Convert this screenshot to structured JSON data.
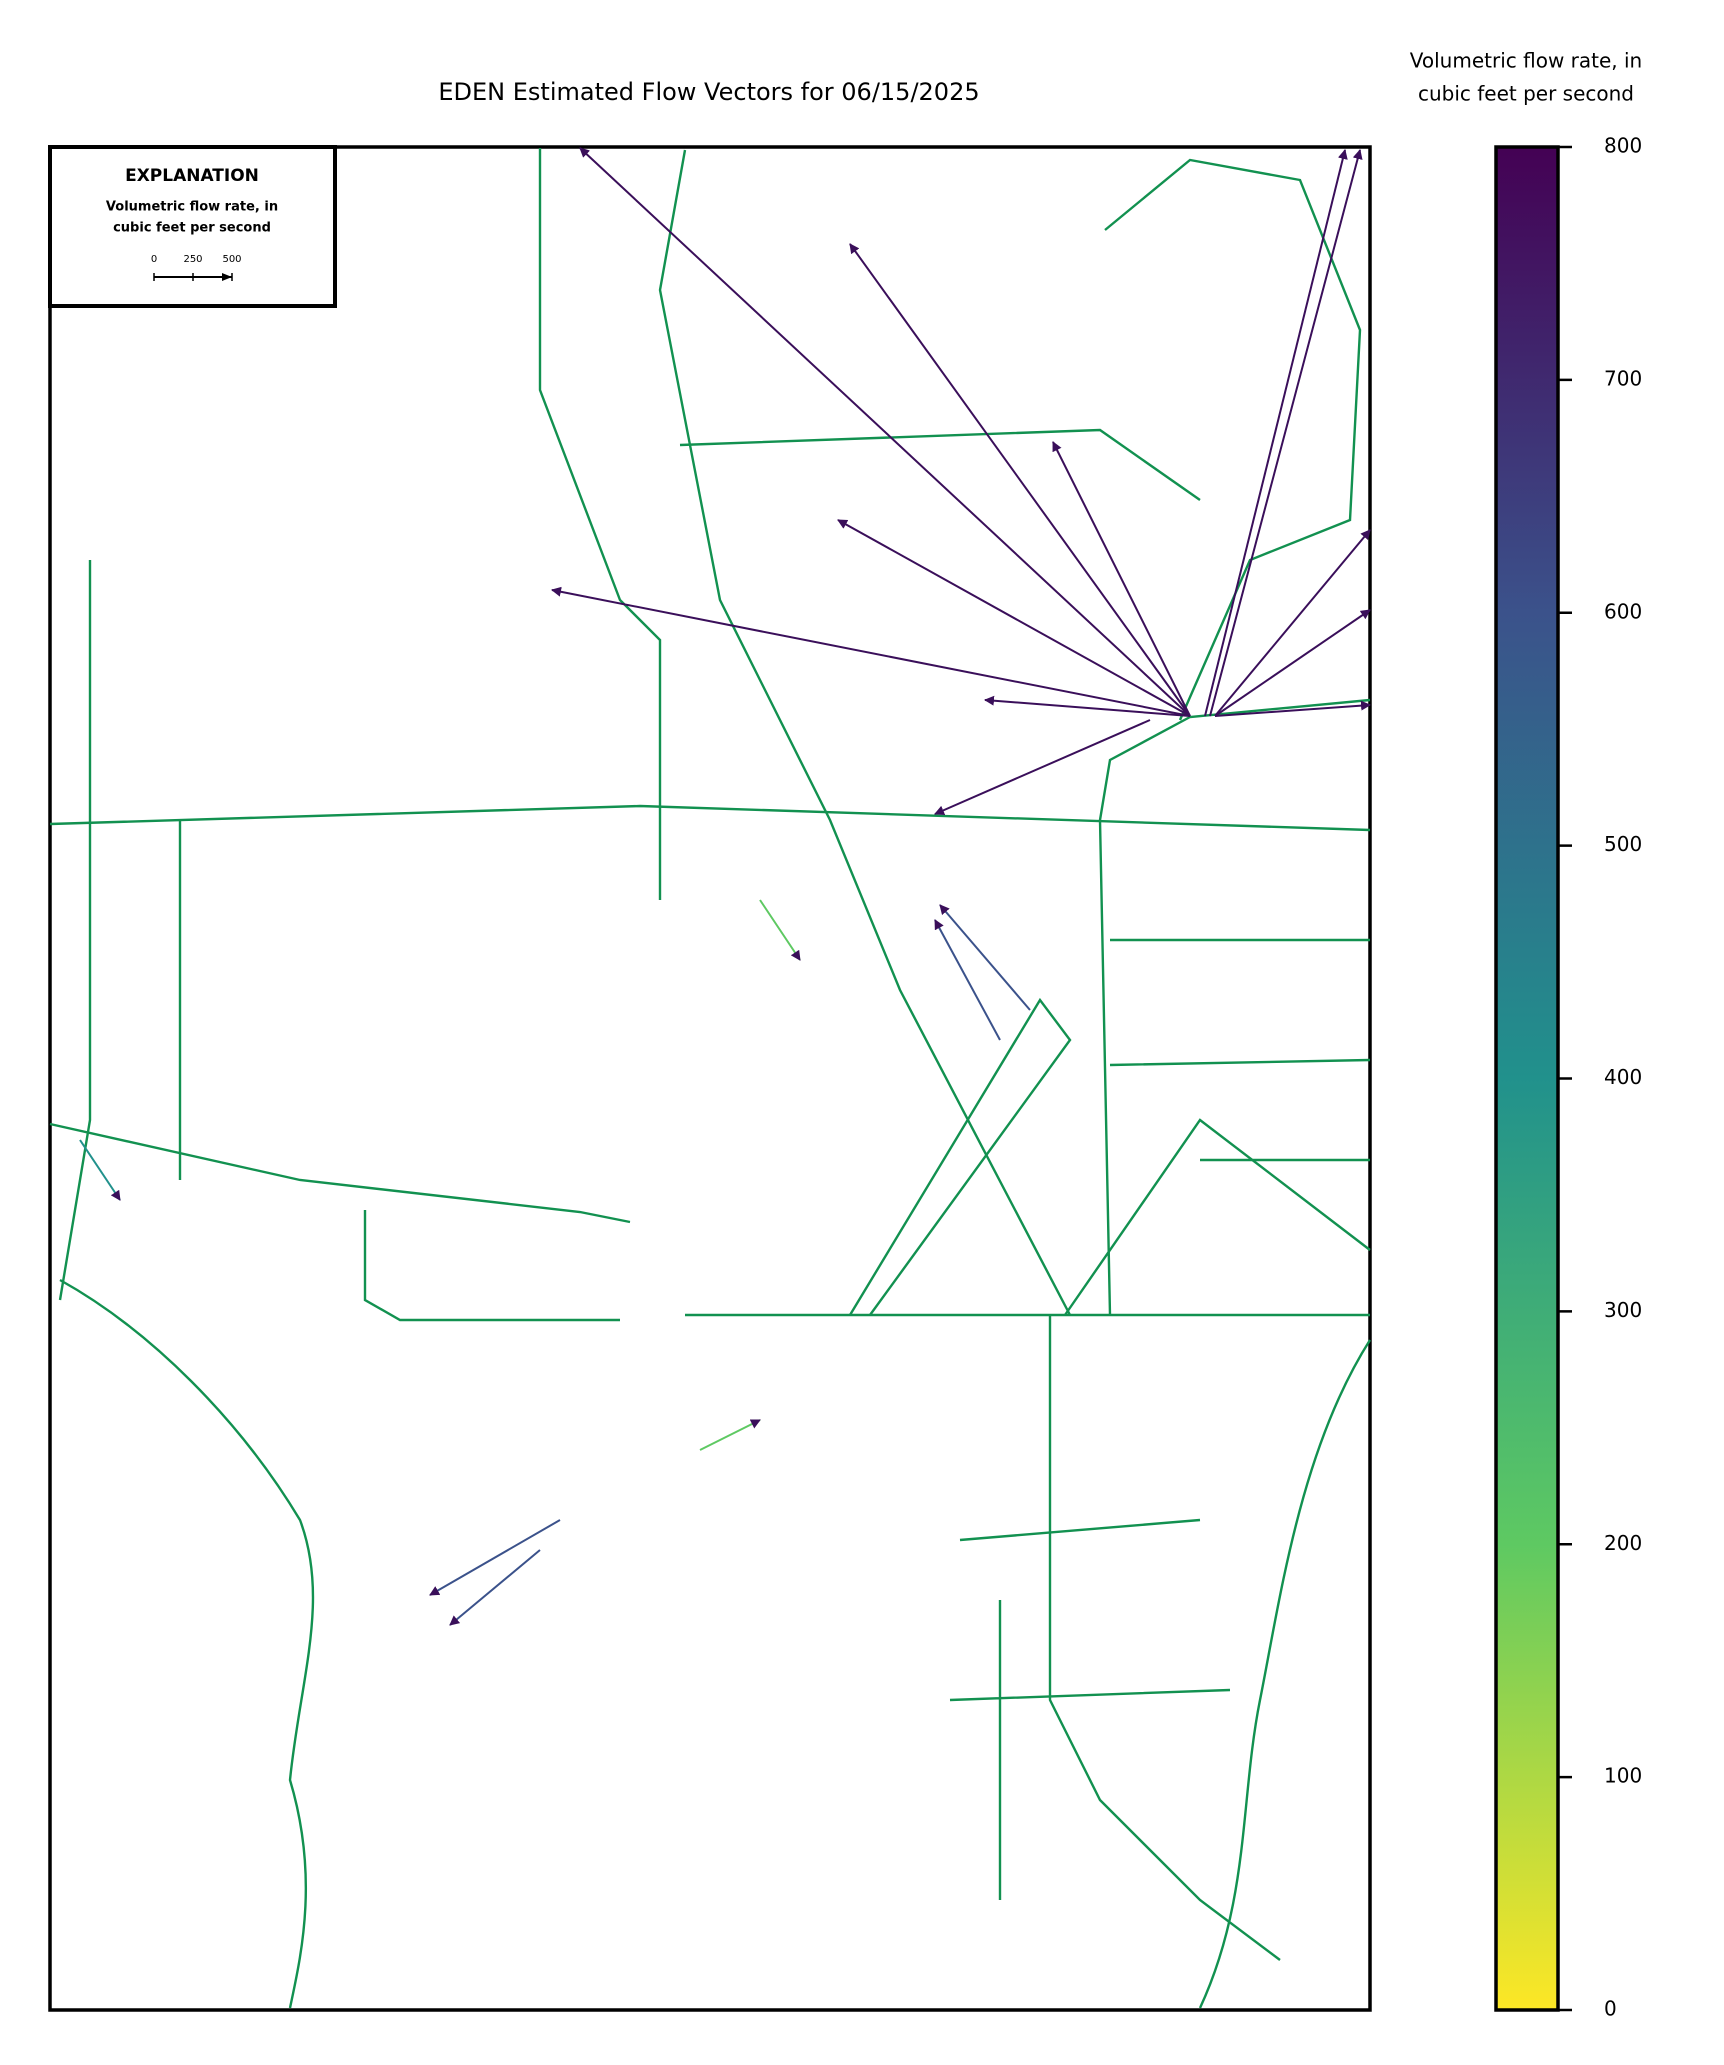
{
  "chart_data": {
    "type": "vector-map",
    "title": "EDEN Estimated Flow Vectors for 06/15/2025",
    "colorbar": {
      "label": [
        "Volumetric flow rate, in",
        "cubic feet per second"
      ],
      "ylim": [
        0,
        800
      ],
      "yticks": [
        0,
        100,
        200,
        300,
        400,
        500,
        600,
        700,
        800
      ],
      "colormap": "viridis_r"
    },
    "explanation": {
      "title": "EXPLANATION",
      "label": [
        "Volumetric flow rate, in",
        "cubic feet per second"
      ],
      "xlim": [
        0,
        500
      ],
      "xticks": [
        0,
        250,
        500
      ]
    }
  }
}
